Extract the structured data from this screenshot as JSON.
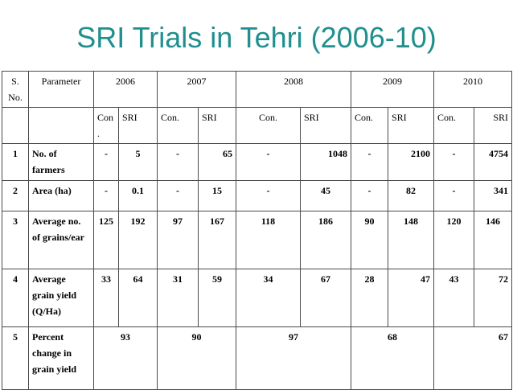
{
  "title": "SRI Trials in Tehri (2006-10)",
  "header": {
    "sno": "S. No.",
    "parameter": "Parameter",
    "years": [
      "2006",
      "2007",
      "2008",
      "2009",
      "2010"
    ],
    "sub": [
      "Con .",
      "SRI",
      "Con.",
      "SRI",
      "Con.",
      "SRI",
      "Con.",
      "SRI",
      "Con.",
      "SRI"
    ]
  },
  "rows": [
    {
      "sno": "1",
      "param": "No. of farmers",
      "vals": [
        "-",
        "5",
        "-",
        "65",
        "-",
        "1048",
        "-",
        "2100",
        "-",
        "4754"
      ]
    },
    {
      "sno": "2",
      "param": "Area (ha)",
      "vals": [
        "-",
        "0.1",
        "-",
        "15",
        "-",
        "45",
        "-",
        "82",
        "-",
        "341"
      ]
    },
    {
      "sno": "3",
      "param": "Average no. of grains/ear",
      "vals": [
        "125",
        "192",
        "97",
        "167",
        "118",
        "186",
        "90",
        "148",
        "120",
        "146"
      ]
    },
    {
      "sno": "4",
      "param": "Average grain yield (Q/Ha)",
      "vals": [
        "33",
        "64",
        "31",
        "59",
        "34",
        "67",
        "28",
        "47",
        "43",
        "72"
      ]
    },
    {
      "sno": "5",
      "param": "Percent change in grain yield",
      "pct": [
        "93",
        "90",
        "97",
        "68",
        "67"
      ]
    }
  ]
}
